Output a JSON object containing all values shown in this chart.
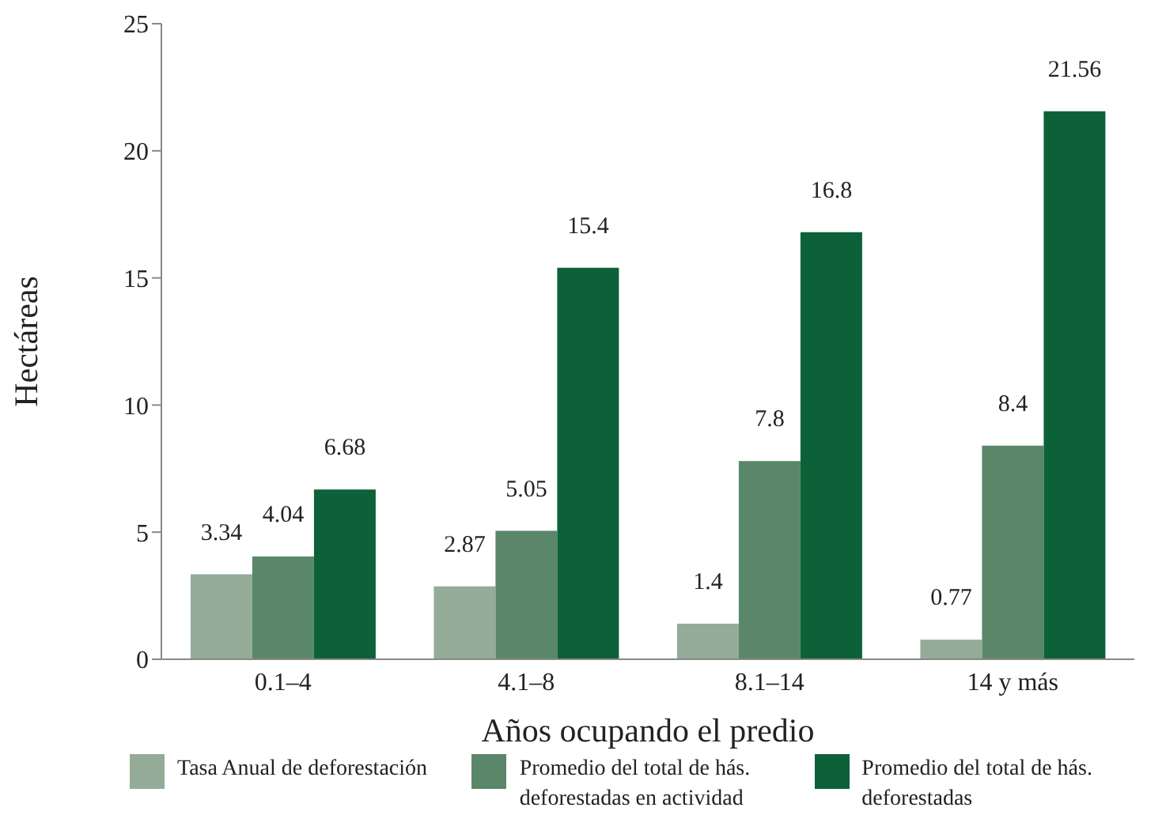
{
  "chart_data": {
    "type": "bar",
    "xlabel": "Años ocupando el predio",
    "ylabel": "Hectáreas",
    "categories": [
      "0.1–4",
      "4.1–8",
      "8.1–14",
      "14 y más"
    ],
    "series": [
      {
        "name": "Tasa Anual de deforestación",
        "color": "#94ab98",
        "values": [
          3.34,
          2.87,
          1.4,
          0.77
        ]
      },
      {
        "name": "Promedio del total de hás. deforestadas en actividad",
        "color": "#5a876a",
        "values": [
          4.04,
          5.05,
          7.8,
          8.4
        ]
      },
      {
        "name": "Promedio del total de hás. deforestadas",
        "color": "#0d6138",
        "values": [
          6.68,
          15.4,
          16.8,
          21.56
        ]
      }
    ],
    "ylim": [
      0,
      25
    ],
    "yticks": [
      0,
      5,
      10,
      15,
      20,
      25
    ],
    "grid": false,
    "legend": "bottom",
    "data_labels": true
  }
}
